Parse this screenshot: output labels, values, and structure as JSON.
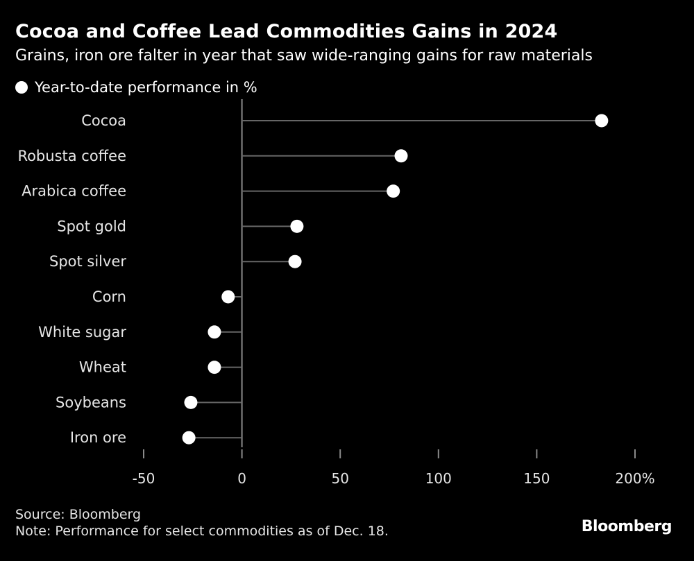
{
  "chart_data": {
    "type": "lollipop",
    "title": "Cocoa and Coffee Lead Commodities Gains in 2024",
    "subtitle": "Grains, iron ore falter in year that saw wide-ranging gains for raw materials",
    "legend": "Year-to-date performance in %",
    "categories": [
      "Cocoa",
      "Robusta coffee",
      "Arabica coffee",
      "Spot gold",
      "Spot silver",
      "Corn",
      "White sugar",
      "Wheat",
      "Soybeans",
      "Iron ore"
    ],
    "values": [
      183,
      81,
      77,
      28,
      27,
      -7,
      -14,
      -14,
      -26,
      -27
    ],
    "xlim": [
      -50,
      200
    ],
    "xticks": [
      -50,
      0,
      50,
      100,
      150,
      200
    ],
    "xtick_labels": [
      "-50",
      "0",
      "50",
      "100",
      "150",
      "200%"
    ],
    "xlabel": "",
    "ylabel": "",
    "grid": false,
    "colors": {
      "background": "#000000",
      "marker": "#ffffff",
      "stem": "#666666",
      "axis": "#8a8a8a",
      "text": "#e6e6e6"
    }
  },
  "footer": {
    "source": "Source: Bloomberg",
    "note": "Note: Performance for select commodities as of Dec. 18."
  },
  "brand": "Bloomberg"
}
